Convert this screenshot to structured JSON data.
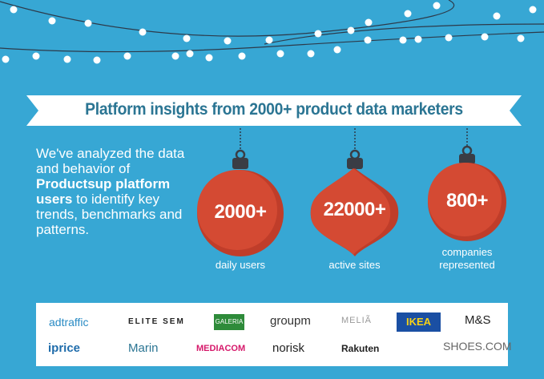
{
  "colors": {
    "background": "#37a7d4",
    "banner": "#ffffff",
    "title": "#2b7593",
    "ornament": "#d44a33",
    "ornament_shade": "#bf3d2a",
    "cap": "#3a3d45"
  },
  "banner": {
    "title": "Platform insights from 2000+ product data marketers"
  },
  "intro": {
    "part1": "We've analyzed the data and behavior of ",
    "bold": "Productsup platform users",
    "part2": " to identify key trends, benchmarks and patterns."
  },
  "stats": [
    {
      "value": "2000+",
      "label": "daily users"
    },
    {
      "value": "22000+",
      "label": "active sites"
    },
    {
      "value": "800+",
      "label": "companies represented"
    }
  ],
  "logos": [
    "adtraffic",
    "ELITE SEM",
    "GALERIA",
    "groupm",
    "MELIÃ",
    "IKEA",
    "M&S",
    "iprice",
    "Marin",
    "MEDIACOM",
    "norisk",
    "Rakuten",
    "SHOES.COM"
  ]
}
